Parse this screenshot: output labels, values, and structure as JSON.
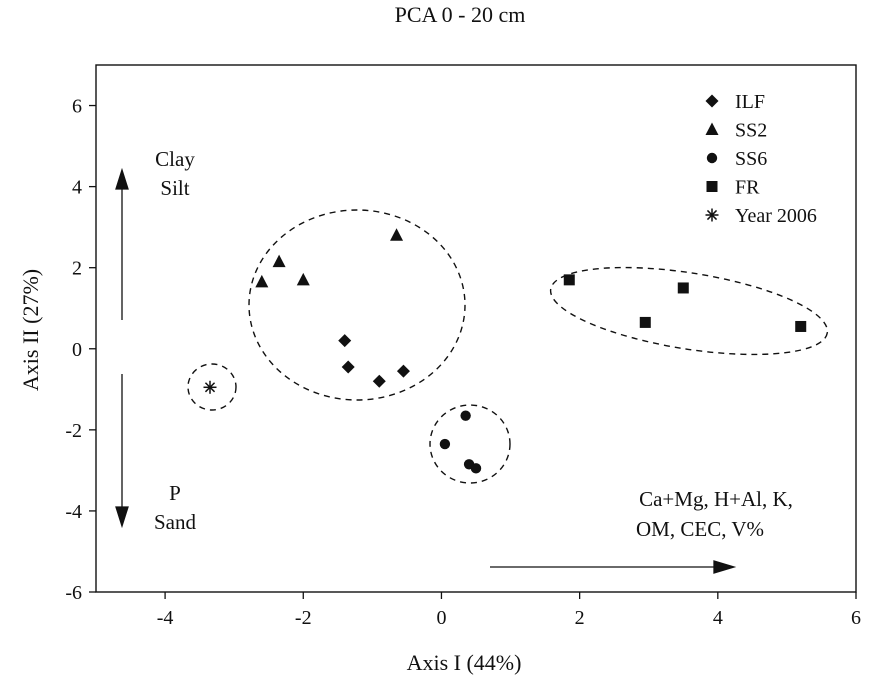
{
  "chart_data": {
    "type": "scatter",
    "title": "PCA 0 - 20 cm",
    "xlabel": "Axis I (44%)",
    "ylabel": "Axis II (27%)",
    "xlim": [
      -5,
      6
    ],
    "ylim": [
      -6,
      7
    ],
    "xticks": [
      -4,
      -2,
      0,
      2,
      4,
      6
    ],
    "yticks": [
      -6,
      -4,
      -2,
      0,
      2,
      4,
      6
    ],
    "legend_position": "top-right",
    "grid": false,
    "series": [
      {
        "name": "ILF",
        "marker": "diamond",
        "points": [
          [
            -1.4,
            0.2
          ],
          [
            -1.35,
            -0.45
          ],
          [
            -0.9,
            -0.8
          ],
          [
            -0.55,
            -0.55
          ]
        ]
      },
      {
        "name": "SS2",
        "marker": "triangle",
        "points": [
          [
            -2.6,
            1.65
          ],
          [
            -2.35,
            2.15
          ],
          [
            -2.0,
            1.7
          ],
          [
            -0.65,
            2.8
          ]
        ]
      },
      {
        "name": "SS6",
        "marker": "circle",
        "points": [
          [
            0.35,
            -1.65
          ],
          [
            0.05,
            -2.35
          ],
          [
            0.4,
            -2.85
          ],
          [
            0.5,
            -2.95
          ]
        ]
      },
      {
        "name": "FR",
        "marker": "square",
        "points": [
          [
            1.85,
            1.7
          ],
          [
            2.95,
            0.65
          ],
          [
            3.5,
            1.5
          ],
          [
            5.2,
            0.55
          ]
        ]
      },
      {
        "name": "Year 2006",
        "marker": "asterisk",
        "points": [
          [
            -3.35,
            -0.95
          ]
        ]
      }
    ],
    "annotations": {
      "up_label_1": "Clay",
      "up_label_2": "Silt",
      "down_label_1": "P",
      "down_label_2": "Sand",
      "right_label_1": "Ca+Mg, H+Al, K,",
      "right_label_2": "OM, CEC, V%"
    }
  }
}
